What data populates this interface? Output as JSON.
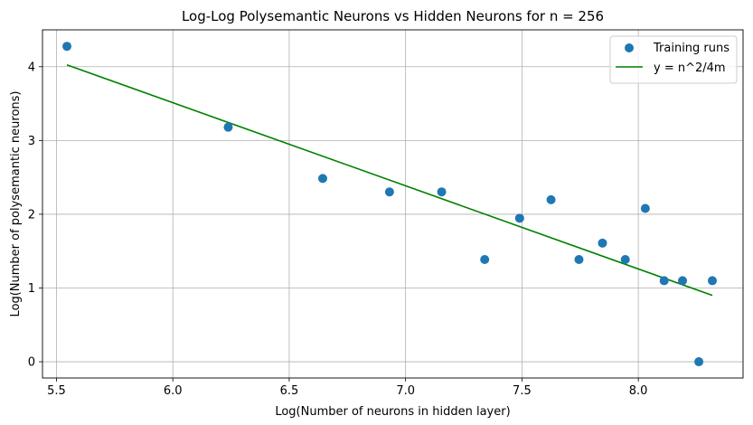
{
  "chart_data": {
    "type": "scatter",
    "title": "Log-Log Polysemantic Neurons vs Hidden Neurons for n = 256",
    "xlabel": "Log(Number of neurons in hidden layer)",
    "ylabel": "Log(Number of polysemantic neurons)",
    "xlim": [
      5.44,
      8.45
    ],
    "ylim": [
      -0.22,
      4.5
    ],
    "xticks": [
      5.5,
      6.0,
      6.5,
      7.0,
      7.5,
      8.0
    ],
    "xtick_labels": [
      "5.5",
      "6.0",
      "6.5",
      "7.0",
      "7.5",
      "8.0"
    ],
    "yticks": [
      0,
      1,
      2,
      3,
      4
    ],
    "ytick_labels": [
      "0",
      "1",
      "2",
      "3",
      "4"
    ],
    "grid": true,
    "legend_position": "top-right",
    "series": [
      {
        "name": "Training runs",
        "kind": "scatter",
        "color": "#1f77b4",
        "x": [
          5.545,
          6.238,
          6.644,
          6.931,
          7.155,
          7.34,
          7.49,
          7.625,
          7.745,
          7.846,
          7.944,
          8.03,
          8.111,
          8.19,
          8.26,
          8.318
        ],
        "y": [
          4.277,
          3.18,
          2.485,
          2.303,
          2.303,
          1.386,
          1.946,
          2.197,
          1.386,
          1.609,
          1.386,
          2.079,
          1.099,
          1.099,
          0.0,
          1.099
        ]
      },
      {
        "name": "y = n^2/4m",
        "kind": "line",
        "color": "green",
        "x": [
          5.545,
          8.318
        ],
        "y": [
          4.025,
          0.9
        ]
      }
    ]
  }
}
